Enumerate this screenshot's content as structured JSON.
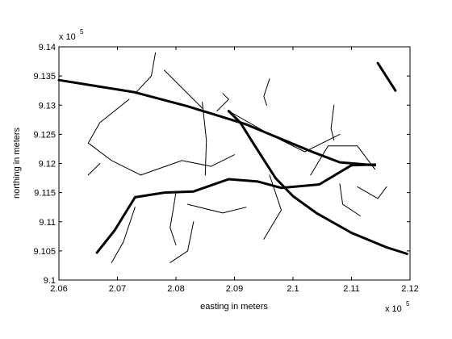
{
  "chart_data": {
    "type": "line",
    "title": "",
    "xlabel": "easting in meters",
    "ylabel": "northing in meters",
    "xlim": [
      206000,
      212000
    ],
    "ylim": [
      910000,
      914000
    ],
    "x_ticks": [
      "2.06",
      "2.07",
      "2.08",
      "2.09",
      "2.1",
      "2.11",
      "2.12"
    ],
    "y_ticks": [
      "9.1",
      "9.105",
      "9.11",
      "9.115",
      "9.12",
      "9.125",
      "9.13",
      "9.135",
      "9.14"
    ],
    "x_exponent": {
      "base": "x 10",
      "power": "5"
    },
    "y_exponent": {
      "base": "x 10",
      "power": "5"
    },
    "grid": false,
    "legend": "none",
    "series": [
      {
        "role": "major-road",
        "x": [
          206000,
          207300,
          208200,
          209200,
          209800,
          210300,
          210800,
          211400
        ],
        "y": [
          913430,
          913220,
          912980,
          912670,
          912420,
          912210,
          912020,
          911970
        ]
      },
      {
        "role": "major-road",
        "x": [
          208900,
          209100,
          209350,
          209700,
          210000,
          210400,
          211000,
          211600,
          211950
        ],
        "y": [
          912900,
          912700,
          912300,
          911750,
          911440,
          911150,
          910810,
          910560,
          910450
        ]
      },
      {
        "role": "major-road",
        "x": [
          206650,
          206950,
          207300,
          207800,
          208300,
          208900,
          209400,
          209800,
          210450,
          211000,
          211400
        ],
        "y": [
          910470,
          910850,
          911420,
          911500,
          911520,
          911730,
          911690,
          911580,
          911640,
          911970,
          911980
        ]
      },
      {
        "role": "major-road",
        "x": [
          211450,
          211750
        ],
        "y": [
          913720,
          913250
        ]
      },
      {
        "role": "minor-road",
        "x": [
          207800,
          208450
        ],
        "y": [
          913600,
          912950
        ]
      },
      {
        "role": "minor-road",
        "x": [
          208450,
          208520,
          208500
        ],
        "y": [
          913050,
          912400,
          911800
        ]
      },
      {
        "role": "minor-road",
        "x": [
          207200,
          206700,
          206500,
          206900,
          207400
        ],
        "y": [
          913100,
          912700,
          912350,
          912050,
          911800
        ]
      },
      {
        "role": "minor-road",
        "x": [
          207400,
          208100,
          208600,
          209000
        ],
        "y": [
          911800,
          912050,
          911950,
          912150
        ]
      },
      {
        "role": "minor-road",
        "x": [
          208900,
          209600,
          210200,
          210800
        ],
        "y": [
          912900,
          912500,
          912200,
          912500
        ]
      },
      {
        "role": "minor-road",
        "x": [
          209600,
          209800,
          209500
        ],
        "y": [
          911800,
          911200,
          910700
        ]
      },
      {
        "role": "minor-road",
        "x": [
          208000,
          207900,
          208000
        ],
        "y": [
          911500,
          910900,
          910600
        ]
      },
      {
        "role": "minor-road",
        "x": [
          208200,
          208800,
          209200
        ],
        "y": [
          911300,
          911150,
          911250
        ]
      },
      {
        "role": "minor-road",
        "x": [
          207300,
          207100,
          206900
        ],
        "y": [
          911250,
          910650,
          910300
        ]
      },
      {
        "role": "minor-road",
        "x": [
          210300,
          210600,
          211100,
          211400
        ],
        "y": [
          911800,
          912300,
          912300,
          911900
        ]
      },
      {
        "role": "minor-road",
        "x": [
          210800,
          210850,
          211150
        ],
        "y": [
          911650,
          911300,
          911100
        ]
      },
      {
        "role": "minor-road",
        "x": [
          211600,
          211450,
          211100
        ],
        "y": [
          911600,
          911400,
          911600
        ]
      },
      {
        "role": "minor-road",
        "x": [
          210700,
          210650,
          210700
        ],
        "y": [
          913000,
          912600,
          912400
        ]
      },
      {
        "role": "minor-road",
        "x": [
          209600,
          209500,
          209550
        ],
        "y": [
          913450,
          913150,
          913000
        ]
      },
      {
        "role": "minor-road",
        "x": [
          207650,
          207580,
          207300
        ],
        "y": [
          913900,
          913500,
          913200
        ]
      },
      {
        "role": "minor-road",
        "x": [
          206700,
          206500
        ],
        "y": [
          912000,
          911800
        ]
      },
      {
        "role": "minor-road",
        "x": [
          208700,
          208900,
          208800
        ],
        "y": [
          912900,
          913100,
          913200
        ]
      },
      {
        "role": "minor-road",
        "x": [
          208300,
          208200,
          207900
        ],
        "y": [
          911000,
          910500,
          910300
        ]
      }
    ]
  }
}
